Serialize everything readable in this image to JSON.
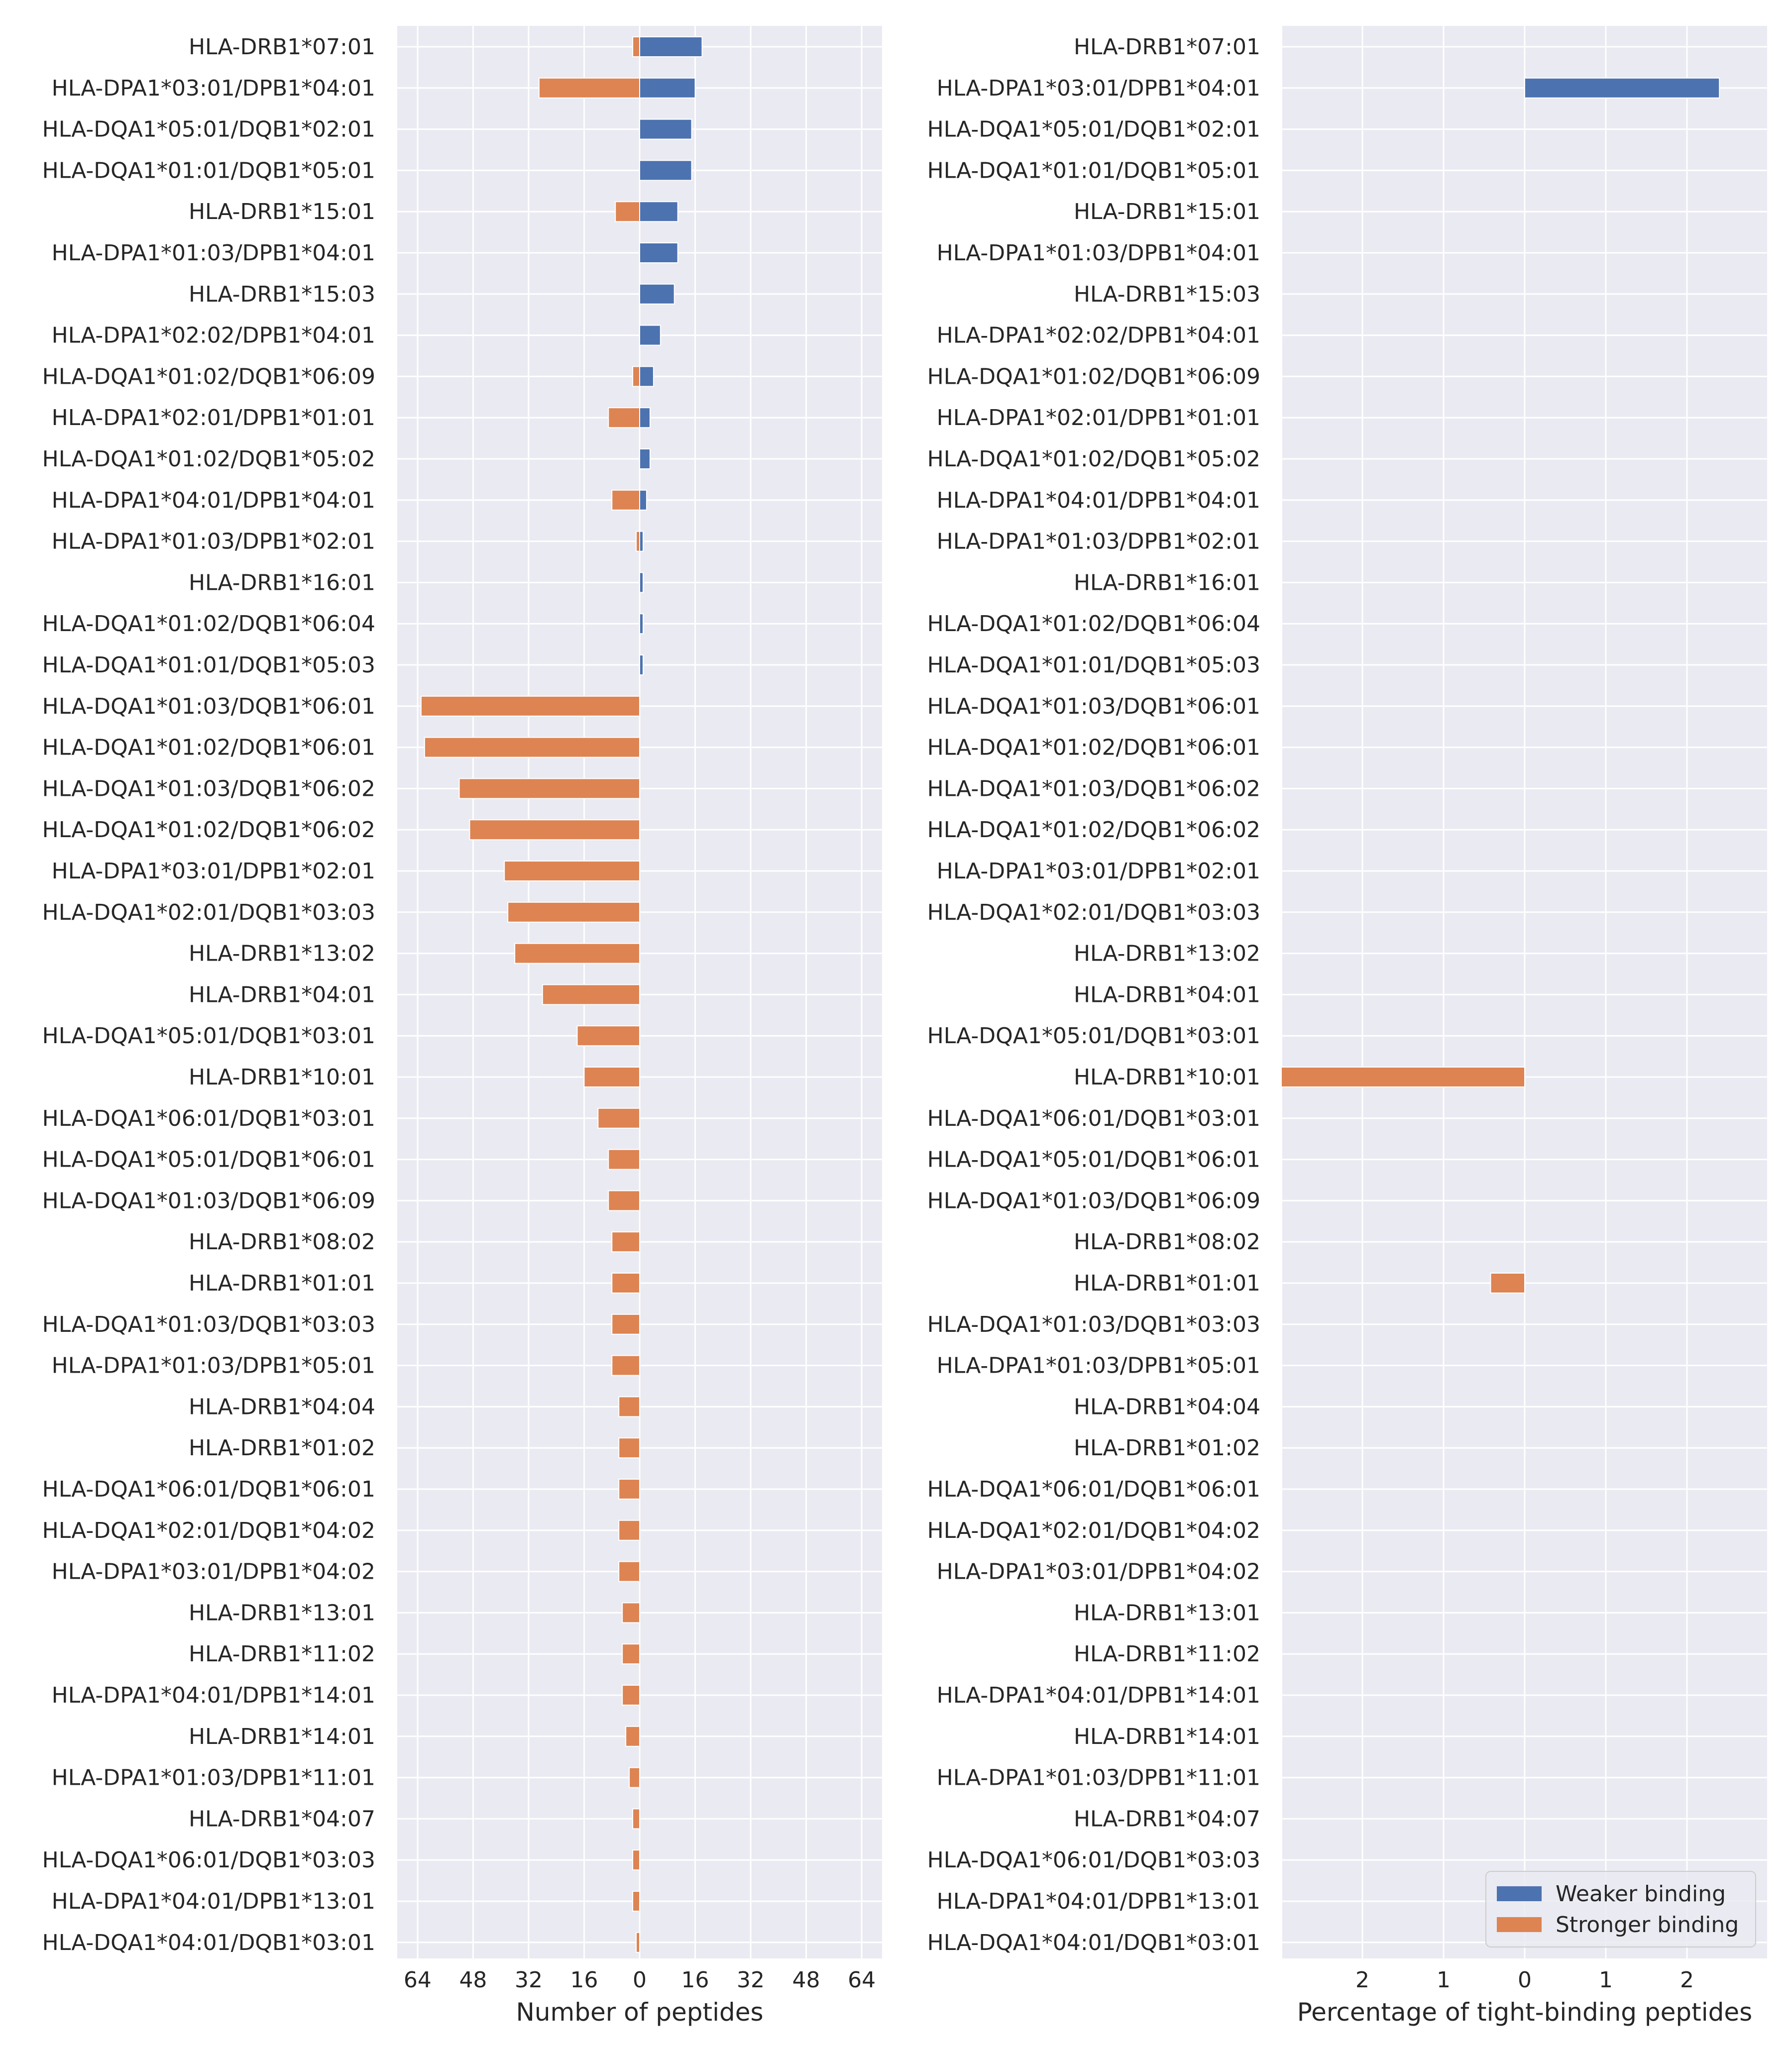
{
  "chart_data": [
    {
      "type": "bar",
      "orientation": "horizontal",
      "xlabel": "Number of peptides",
      "x_ticks": [
        "64",
        "48",
        "32",
        "16",
        "0",
        "16",
        "32",
        "48",
        "64"
      ],
      "xlim": [
        -70,
        70
      ],
      "categories": [
        "HLA-DRB1*07:01",
        "HLA-DPA1*03:01/DPB1*04:01",
        "HLA-DQA1*05:01/DQB1*02:01",
        "HLA-DQA1*01:01/DQB1*05:01",
        "HLA-DRB1*15:01",
        "HLA-DPA1*01:03/DPB1*04:01",
        "HLA-DRB1*15:03",
        "HLA-DPA1*02:02/DPB1*04:01",
        "HLA-DQA1*01:02/DQB1*06:09",
        "HLA-DPA1*02:01/DPB1*01:01",
        "HLA-DQA1*01:02/DQB1*05:02",
        "HLA-DPA1*04:01/DPB1*04:01",
        "HLA-DPA1*01:03/DPB1*02:01",
        "HLA-DRB1*16:01",
        "HLA-DQA1*01:02/DQB1*06:04",
        "HLA-DQA1*01:01/DQB1*05:03",
        "HLA-DQA1*01:03/DQB1*06:01",
        "HLA-DQA1*01:02/DQB1*06:01",
        "HLA-DQA1*01:03/DQB1*06:02",
        "HLA-DQA1*01:02/DQB1*06:02",
        "HLA-DPA1*03:01/DPB1*02:01",
        "HLA-DQA1*02:01/DQB1*03:03",
        "HLA-DRB1*13:02",
        "HLA-DRB1*04:01",
        "HLA-DQA1*05:01/DQB1*03:01",
        "HLA-DRB1*10:01",
        "HLA-DQA1*06:01/DQB1*03:01",
        "HLA-DQA1*05:01/DQB1*06:01",
        "HLA-DQA1*01:03/DQB1*06:09",
        "HLA-DRB1*08:02",
        "HLA-DRB1*01:01",
        "HLA-DQA1*01:03/DQB1*03:03",
        "HLA-DPA1*01:03/DPB1*05:01",
        "HLA-DRB1*04:04",
        "HLA-DRB1*01:02",
        "HLA-DQA1*06:01/DQB1*06:01",
        "HLA-DQA1*02:01/DQB1*04:02",
        "HLA-DPA1*03:01/DPB1*04:02",
        "HLA-DRB1*13:01",
        "HLA-DRB1*11:02",
        "HLA-DPA1*04:01/DPB1*14:01",
        "HLA-DRB1*14:01",
        "HLA-DPA1*01:03/DPB1*11:01",
        "HLA-DRB1*04:07",
        "HLA-DQA1*06:01/DQB1*03:03",
        "HLA-DPA1*04:01/DPB1*13:01",
        "HLA-DQA1*04:01/DQB1*03:01"
      ],
      "series": [
        {
          "name": "Weaker binding",
          "color": "#4c72b0",
          "direction": "right",
          "values": [
            18,
            16,
            15,
            15,
            11,
            11,
            10,
            6,
            4,
            3,
            3,
            2,
            1,
            1,
            1,
            1,
            0,
            0,
            0,
            0,
            0,
            0,
            0,
            0,
            0,
            0,
            0,
            0,
            0,
            0,
            0,
            0,
            0,
            0,
            0,
            0,
            0,
            0,
            0,
            0,
            0,
            0,
            0,
            0,
            0,
            0,
            0
          ]
        },
        {
          "name": "Stronger binding",
          "color": "#dd8452",
          "direction": "left",
          "values": [
            2,
            29,
            0,
            0,
            7,
            0,
            0,
            0,
            2,
            9,
            0,
            8,
            1,
            0,
            0,
            0,
            63,
            62,
            52,
            49,
            39,
            38,
            36,
            28,
            18,
            16,
            12,
            9,
            9,
            8,
            8,
            8,
            8,
            6,
            6,
            6,
            6,
            6,
            5,
            5,
            5,
            4,
            3,
            2,
            2,
            2,
            1
          ]
        }
      ]
    },
    {
      "type": "bar",
      "orientation": "horizontal",
      "xlabel": "Percentage of tight-binding peptides",
      "x_ticks": [
        "2",
        "1",
        "0",
        "1",
        "2"
      ],
      "xlim": [
        -3.0,
        3.0
      ],
      "categories_same_as_first": true,
      "series": [
        {
          "name": "Weaker binding",
          "color": "#4c72b0",
          "direction": "right",
          "values": [
            0,
            2.4,
            0,
            0,
            0,
            0,
            0,
            0,
            0,
            0,
            0,
            0,
            0,
            0,
            0,
            0,
            0,
            0,
            0,
            0,
            0,
            0,
            0,
            0,
            0,
            0,
            0,
            0,
            0,
            0,
            0,
            0,
            0,
            0,
            0,
            0,
            0,
            0,
            0,
            0,
            0,
            0,
            0,
            0,
            0,
            0,
            0
          ]
        },
        {
          "name": "Stronger binding",
          "color": "#dd8452",
          "direction": "left",
          "values": [
            0,
            0,
            0,
            0,
            0,
            0,
            0,
            0,
            0,
            0,
            0,
            0,
            0,
            0,
            0,
            0,
            0,
            0,
            0,
            0,
            0,
            0,
            0,
            0,
            0,
            3.0,
            0,
            0,
            0,
            0,
            0.42,
            0,
            0,
            0,
            0,
            0,
            0,
            0,
            0,
            0,
            0,
            0,
            0,
            0,
            0,
            0,
            0
          ]
        }
      ],
      "legend": {
        "placement": "lower-right",
        "entries": [
          "Weaker binding",
          "Stronger binding"
        ]
      }
    }
  ],
  "style": {
    "panel_background": "#eaeaf2",
    "grid_color": "#ffffff"
  }
}
